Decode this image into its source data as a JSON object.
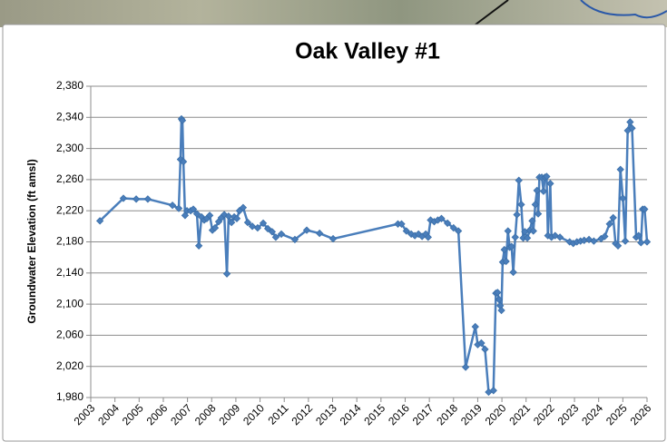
{
  "chart_data": {
    "type": "line",
    "title": "Oak Valley #1",
    "y_label": "Groundwater Elevation (ft amsl)",
    "color": "#4a7ebb",
    "marker_color": "#3b6fa8",
    "grid": true,
    "xlim": [
      2003,
      2026
    ],
    "xticks": [
      2003,
      2004,
      2005,
      2006,
      2007,
      2008,
      2009,
      2010,
      2011,
      2012,
      2013,
      2014,
      2015,
      2016,
      2017,
      2018,
      2019,
      2020,
      2021,
      2022,
      2023,
      2024,
      2025,
      2026
    ],
    "ylim": [
      1980,
      2380
    ],
    "yticks": [
      {
        "value": 1980,
        "label": "1,980"
      },
      {
        "value": 2020,
        "label": "2,020"
      },
      {
        "value": 2060,
        "label": "2,060"
      },
      {
        "value": 2100,
        "label": "2,100"
      },
      {
        "value": 2140,
        "label": "2,140"
      },
      {
        "value": 2180,
        "label": "2,180"
      },
      {
        "value": 2220,
        "label": "2,220"
      },
      {
        "value": 2260,
        "label": "2,260"
      },
      {
        "value": 2300,
        "label": "2,300"
      },
      {
        "value": 2340,
        "label": "2,340"
      },
      {
        "value": 2380,
        "label": "2,380"
      }
    ],
    "x": [
      2003.38,
      2004.35,
      2004.88,
      2005.36,
      2006.38,
      2006.64,
      2006.71,
      2006.75,
      2006.79,
      2006.83,
      2006.9,
      2006.98,
      2007.13,
      2007.24,
      2007.39,
      2007.47,
      2007.58,
      2007.69,
      2007.8,
      2007.92,
      2008.03,
      2008.14,
      2008.29,
      2008.4,
      2008.52,
      2008.63,
      2008.7,
      2008.82,
      2008.93,
      2009.04,
      2009.15,
      2009.3,
      2009.49,
      2009.68,
      2009.9,
      2010.13,
      2010.32,
      2010.5,
      2010.65,
      2010.88,
      2011.44,
      2011.93,
      2012.46,
      2013.02,
      2015.7,
      2015.85,
      2016.05,
      2016.25,
      2016.4,
      2016.55,
      2016.7,
      2016.85,
      2016.95,
      2017.05,
      2017.2,
      2017.35,
      2017.5,
      2017.75,
      2018.0,
      2018.2,
      2018.5,
      2018.9,
      2019.0,
      2019.15,
      2019.3,
      2019.45,
      2019.65,
      2019.75,
      2019.82,
      2019.88,
      2019.93,
      2019.98,
      2020.03,
      2020.1,
      2020.17,
      2020.25,
      2020.32,
      2020.4,
      2020.47,
      2020.55,
      2020.62,
      2020.7,
      2020.8,
      2020.88,
      2020.95,
      2021.05,
      2021.15,
      2021.25,
      2021.3,
      2021.38,
      2021.45,
      2021.5,
      2021.55,
      2021.65,
      2021.72,
      2021.78,
      2021.85,
      2021.9,
      2022.0,
      2022.05,
      2022.2,
      2022.4,
      2022.8,
      2022.95,
      2023.1,
      2023.25,
      2023.4,
      2023.6,
      2023.8,
      2024.1,
      2024.25,
      2024.45,
      2024.6,
      2024.7,
      2024.8,
      2024.9,
      2025.0,
      2025.1,
      2025.2,
      2025.3,
      2025.38,
      2025.55,
      2025.65,
      2025.75,
      2025.82,
      2025.9,
      2026.0
    ],
    "values": [
      2207,
      2236,
      2235,
      2235,
      2227,
      2223,
      2286,
      2338,
      2336,
      2283,
      2214,
      2220,
      2220,
      2222,
      2216,
      2175,
      2212,
      2208,
      2210,
      2214,
      2195,
      2198,
      2206,
      2211,
      2215,
      2139,
      2213,
      2205,
      2212,
      2210,
      2220,
      2224,
      2205,
      2200,
      2198,
      2204,
      2197,
      2193,
      2186,
      2190,
      2183,
      2195,
      2191,
      2184,
      2203,
      2203,
      2194,
      2190,
      2188,
      2190,
      2187,
      2190,
      2186,
      2208,
      2206,
      2208,
      2210,
      2204,
      2198,
      2194,
      2019,
      2071,
      2048,
      2050,
      2042,
      1987,
      1989,
      2114,
      2115,
      2106,
      2098,
      2092,
      2154,
      2170,
      2155,
      2194,
      2173,
      2174,
      2141,
      2186,
      2215,
      2259,
      2228,
      2185,
      2193,
      2185,
      2195,
      2207,
      2194,
      2228,
      2246,
      2216,
      2263,
      2263,
      2245,
      2263,
      2264,
      2188,
      2255,
      2186,
      2188,
      2186,
      2180,
      2178,
      2180,
      2181,
      2182,
      2183,
      2181,
      2184,
      2187,
      2203,
      2211,
      2178,
      2175,
      2273,
      2236,
      2181,
      2323,
      2334,
      2326,
      2186,
      2188,
      2179,
      2222,
      2222,
      2180
    ]
  }
}
